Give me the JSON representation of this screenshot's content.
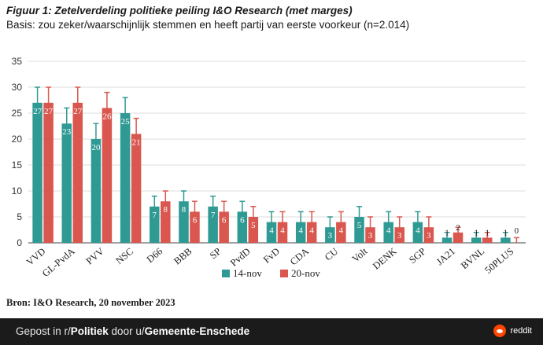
{
  "title": "Figuur 1: Zetelverdeling politieke peiling I&O Research (met marges)",
  "subtitle": "Basis: zou zeker/waarschijnlijk stemmen en heeft partij van eerste voorkeur (n=2.014)",
  "source": "Bron: I&O Research, 20 november 2023",
  "footer": {
    "prefix": "Gepost in r/",
    "subreddit": "Politiek",
    "middle": " door u/",
    "user": "Gemeente-Enschede",
    "brand": "reddit"
  },
  "colors": {
    "series1": "#2f9a93",
    "series2": "#d9574f",
    "axis": "#444444",
    "grid": "#dddddd"
  },
  "chart_data": {
    "type": "bar",
    "title": "Figuur 1: Zetelverdeling politieke peiling I&O Research (met marges)",
    "xlabel": "",
    "ylabel": "",
    "ylim": [
      0,
      35
    ],
    "yticks": [
      "0",
      "5",
      "10",
      "15",
      "20",
      "25",
      "30",
      "35"
    ],
    "categories": [
      "VVD",
      "GL-PvdA",
      "PVV",
      "NSC",
      "D66",
      "BBB",
      "SP",
      "PvdD",
      "FvD",
      "CDA",
      "CU",
      "Volt",
      "DENK",
      "SGP",
      "JA21",
      "BVNL",
      "50PLUS"
    ],
    "series": [
      {
        "name": "14-nov",
        "values": [
          27,
          23,
          20,
          25,
          7,
          8,
          7,
          6,
          4,
          4,
          3,
          5,
          4,
          4,
          1,
          1,
          1
        ],
        "labels": [
          "27",
          "23",
          "20",
          "25",
          "7",
          "8",
          "7",
          "6",
          "4",
          "4",
          "3",
          "5",
          "4",
          "4",
          "1",
          "1",
          "1"
        ],
        "err_low": [
          24,
          20,
          17,
          22,
          5,
          6,
          5,
          4,
          2,
          2,
          1,
          3,
          2,
          2,
          0,
          0,
          0
        ],
        "err_high": [
          30,
          26,
          23,
          28,
          9,
          10,
          9,
          8,
          6,
          6,
          5,
          7,
          6,
          6,
          2,
          2,
          2
        ]
      },
      {
        "name": "20-nov",
        "values": [
          27,
          27,
          26,
          21,
          8,
          6,
          6,
          5,
          4,
          4,
          4,
          3,
          3,
          3,
          2,
          1,
          0
        ],
        "labels": [
          "27",
          "27",
          "26",
          "21",
          "8",
          "6",
          "6",
          "5",
          "4",
          "4",
          "4",
          "3",
          "3",
          "3",
          "2",
          "1",
          "0"
        ],
        "err_low": [
          24,
          24,
          23,
          18,
          6,
          4,
          4,
          3,
          2,
          2,
          2,
          1,
          1,
          1,
          1,
          0,
          0
        ],
        "err_high": [
          30,
          30,
          29,
          24,
          10,
          8,
          8,
          7,
          6,
          6,
          6,
          5,
          5,
          5,
          3,
          2,
          1
        ]
      }
    ]
  }
}
